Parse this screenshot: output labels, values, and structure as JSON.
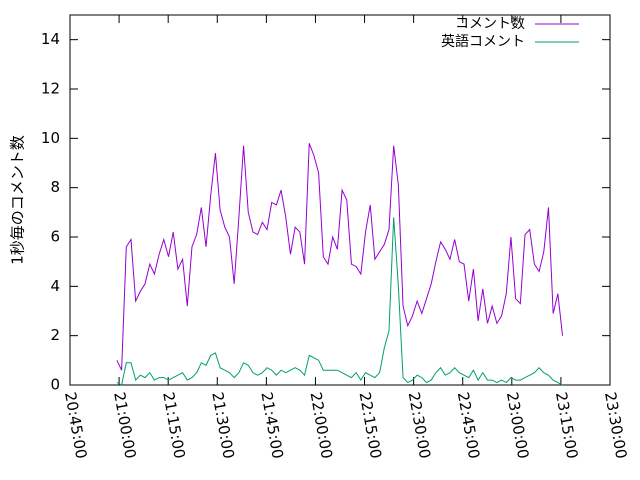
{
  "chart_data": {
    "type": "line",
    "y_label": "1秒毎のコメント数",
    "x": [
      "20:59:20",
      "21:00:46",
      "21:02:12",
      "21:03:38",
      "21:05:04",
      "21:06:30",
      "21:07:56",
      "21:09:22",
      "21:10:48",
      "21:12:14",
      "21:13:40",
      "21:15:06",
      "21:16:32",
      "21:17:58",
      "21:19:24",
      "21:20:50",
      "21:22:16",
      "21:23:42",
      "21:25:08",
      "21:26:34",
      "21:28:00",
      "21:29:26",
      "21:30:52",
      "21:32:18",
      "21:33:44",
      "21:35:10",
      "21:36:36",
      "21:38:02",
      "21:39:28",
      "21:40:54",
      "21:42:20",
      "21:43:46",
      "21:45:12",
      "21:46:38",
      "21:48:04",
      "21:49:30",
      "21:50:56",
      "21:52:22",
      "21:53:48",
      "21:55:14",
      "21:56:40",
      "21:58:06",
      "21:59:32",
      "22:00:58",
      "22:02:24",
      "22:03:50",
      "22:05:16",
      "22:06:42",
      "22:08:08",
      "22:09:34",
      "22:11:00",
      "22:12:26",
      "22:13:52",
      "22:15:18",
      "22:16:44",
      "22:18:10",
      "22:19:36",
      "22:21:02",
      "22:22:28",
      "22:23:54",
      "22:25:20",
      "22:26:46",
      "22:28:12",
      "22:29:38",
      "22:31:04",
      "22:32:30",
      "22:33:56",
      "22:35:22",
      "22:36:48",
      "22:38:14",
      "22:39:40",
      "22:41:06",
      "22:42:32",
      "22:43:58",
      "22:45:24",
      "22:46:50",
      "22:48:16",
      "22:49:42",
      "22:51:08",
      "22:52:34",
      "22:54:00",
      "22:55:26",
      "22:56:52",
      "22:58:18",
      "22:59:44",
      "23:01:10",
      "23:02:36",
      "23:04:02",
      "23:05:28",
      "23:06:54",
      "23:08:20",
      "23:09:46",
      "23:11:12",
      "23:12:38",
      "23:14:04",
      "23:15:30"
    ],
    "series": [
      {
        "name": "コメント数",
        "color": "#9400d3",
        "values": [
          1.0,
          0.6,
          5.6,
          5.9,
          3.4,
          3.8,
          4.1,
          4.9,
          4.5,
          5.3,
          5.9,
          5.2,
          6.2,
          4.7,
          5.1,
          3.2,
          5.6,
          6.1,
          7.2,
          5.6,
          7.7,
          9.4,
          7.1,
          6.4,
          6.0,
          4.1,
          6.8,
          9.7,
          7.0,
          6.2,
          6.1,
          6.6,
          6.3,
          7.4,
          7.3,
          7.9,
          6.8,
          5.3,
          6.4,
          6.2,
          4.9,
          9.8,
          9.3,
          8.6,
          5.2,
          4.9,
          6.0,
          5.5,
          7.9,
          7.5,
          4.9,
          4.8,
          4.5,
          6.2,
          7.3,
          5.1,
          5.4,
          5.7,
          6.3,
          9.7,
          8.1,
          3.2,
          2.4,
          2.8,
          3.4,
          2.9,
          3.5,
          4.1,
          5.0,
          5.8,
          5.5,
          5.1,
          5.9,
          5.0,
          4.9,
          3.4,
          4.7,
          2.6,
          3.9,
          2.5,
          3.2,
          2.5,
          2.8,
          3.7,
          6.0,
          3.5,
          3.3,
          6.1,
          6.3,
          4.9,
          4.6,
          5.4,
          7.2,
          2.9,
          3.7,
          2.0
        ]
      },
      {
        "name": "英語コメント",
        "color": "#009e73",
        "values": [
          0.1,
          0.0,
          0.9,
          0.9,
          0.2,
          0.4,
          0.3,
          0.5,
          0.2,
          0.3,
          0.3,
          0.2,
          0.3,
          0.4,
          0.5,
          0.2,
          0.3,
          0.5,
          0.9,
          0.8,
          1.2,
          1.3,
          0.7,
          0.6,
          0.5,
          0.3,
          0.5,
          0.9,
          0.8,
          0.5,
          0.4,
          0.5,
          0.7,
          0.6,
          0.4,
          0.6,
          0.5,
          0.6,
          0.7,
          0.6,
          0.4,
          1.2,
          1.1,
          1.0,
          0.6,
          0.6,
          0.6,
          0.6,
          0.5,
          0.4,
          0.3,
          0.5,
          0.2,
          0.5,
          0.4,
          0.3,
          0.5,
          1.5,
          2.2,
          6.8,
          4.0,
          0.3,
          0.1,
          0.2,
          0.4,
          0.3,
          0.1,
          0.2,
          0.5,
          0.7,
          0.4,
          0.5,
          0.7,
          0.5,
          0.4,
          0.3,
          0.6,
          0.2,
          0.5,
          0.2,
          0.2,
          0.1,
          0.2,
          0.1,
          0.3,
          0.2,
          0.2,
          0.3,
          0.4,
          0.5,
          0.7,
          0.5,
          0.4,
          0.2,
          0.1,
          0.0
        ]
      }
    ],
    "xlim": [
      "20:45:00",
      "23:30:00"
    ],
    "xticks": [
      "20:45:00",
      "21:00:00",
      "21:15:00",
      "21:30:00",
      "21:45:00",
      "22:00:00",
      "22:15:00",
      "22:30:00",
      "22:45:00",
      "23:00:00",
      "23:15:00",
      "23:30:00"
    ],
    "ylim": [
      0,
      15
    ],
    "yticks": [
      0,
      2,
      4,
      6,
      8,
      10,
      12,
      14
    ],
    "legend": "upper right"
  }
}
